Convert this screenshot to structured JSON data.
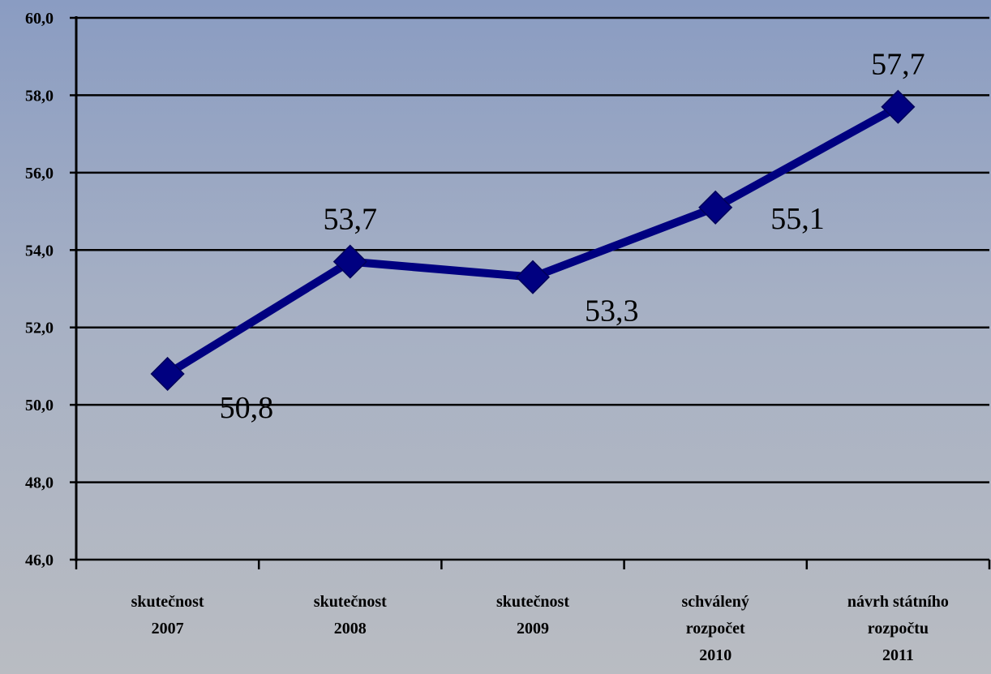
{
  "chart_data": {
    "type": "line",
    "title": "",
    "xlabel": "",
    "ylabel": "",
    "ylim": [
      46,
      60
    ],
    "ystep": 2,
    "ytick_labels": [
      "46,0",
      "48,0",
      "50,0",
      "52,0",
      "54,0",
      "56,0",
      "58,0",
      "60,0"
    ],
    "grid": true,
    "legend": "none",
    "categories": [
      [
        "skutečnost",
        "2007"
      ],
      [
        "skutečnost",
        "2008"
      ],
      [
        "skutečnost",
        "2009"
      ],
      [
        "schválený",
        "rozpočet",
        "2010"
      ],
      [
        "návrh státního",
        "rozpočtu",
        "2011"
      ]
    ],
    "series": [
      {
        "values": [
          50.8,
          53.7,
          53.3,
          55.1,
          57.7
        ],
        "labels": [
          "50,8",
          "53,7",
          "53,3",
          "55,1",
          "57,7"
        ],
        "label_position": [
          "below-right",
          "above",
          "below-right",
          "right",
          "above"
        ]
      }
    ],
    "colors": {
      "line": "#000080",
      "marker": "#000080",
      "grid": "#000000"
    }
  }
}
